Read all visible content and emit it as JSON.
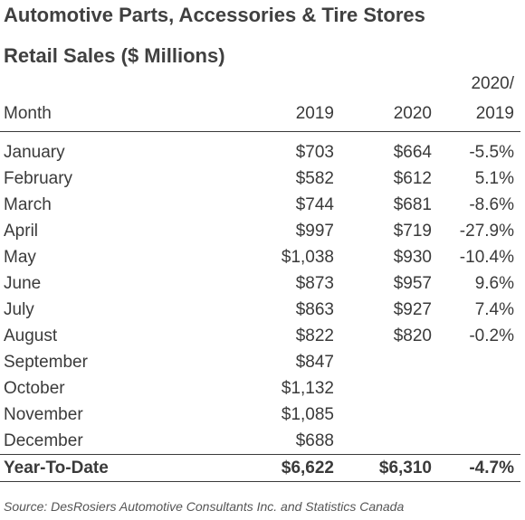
{
  "title_line1": "Automotive Parts, Accessories & Tire Stores",
  "title_line2": "Retail Sales ($ Millions)",
  "header": {
    "month": "Month",
    "col_2019": "2019",
    "col_2020": "2020",
    "change_line1": "2020/",
    "change_line2": "2019"
  },
  "rows": [
    {
      "month": "January",
      "v2019": "$703",
      "v2020": "$664",
      "change": "-5.5%"
    },
    {
      "month": "February",
      "v2019": "$582",
      "v2020": "$612",
      "change": "5.1%"
    },
    {
      "month": "March",
      "v2019": "$744",
      "v2020": "$681",
      "change": "-8.6%"
    },
    {
      "month": "April",
      "v2019": "$997",
      "v2020": "$719",
      "change": "-27.9%"
    },
    {
      "month": "May",
      "v2019": "$1,038",
      "v2020": "$930",
      "change": "-10.4%"
    },
    {
      "month": "June",
      "v2019": "$873",
      "v2020": "$957",
      "change": "9.6%"
    },
    {
      "month": "July",
      "v2019": "$863",
      "v2020": "$927",
      "change": "7.4%"
    },
    {
      "month": "August",
      "v2019": "$822",
      "v2020": "$820",
      "change": "-0.2%"
    },
    {
      "month": "September",
      "v2019": "$847",
      "v2020": "",
      "change": ""
    },
    {
      "month": "October",
      "v2019": "$1,132",
      "v2020": "",
      "change": ""
    },
    {
      "month": "November",
      "v2019": "$1,085",
      "v2020": "",
      "change": ""
    },
    {
      "month": "December",
      "v2019": "$688",
      "v2020": "",
      "change": ""
    }
  ],
  "ytd": {
    "month": "Year-To-Date",
    "v2019": "$6,622",
    "v2020": "$6,310",
    "change": "-4.7%"
  },
  "source": "Source:  DesRosiers Automotive Consultants Inc. and Statistics Canada"
}
